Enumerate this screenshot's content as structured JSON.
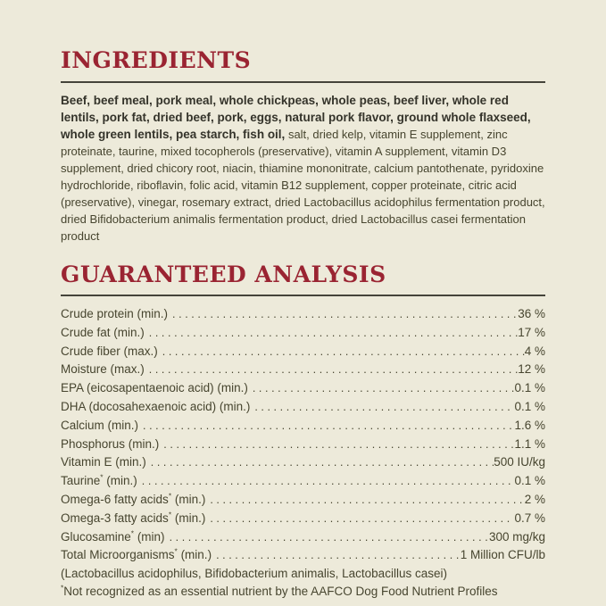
{
  "theme": {
    "background_color": "#edeada",
    "heading_color": "#9a2432",
    "rule_color": "#45443a",
    "text_color": "#47452f",
    "bold_text_color": "#34332a"
  },
  "ingredients": {
    "heading": "INGREDIENTS",
    "primary": "Beef, beef meal, pork meal, whole chickpeas, whole peas, beef liver, whole red lentils, pork fat, dried beef, pork, eggs, natural pork flavor, ground whole flaxseed, whole green lentils, pea starch, fish oil,",
    "secondary": "salt, dried kelp, vitamin E supplement, zinc proteinate, taurine, mixed tocopherols (preservative), vitamin A supplement, vitamin D3 supplement, dried chicory root, niacin, thiamine mononitrate, calcium pantothenate, pyridoxine hydrochloride, riboflavin, folic acid, vitamin B12 supplement, copper proteinate, citric acid (preservative), vinegar, rosemary extract, dried Lactobacillus acidophilus fermentation product, dried Bifidobacterium animalis fermentation product, dried Lactobacillus casei fermentation product"
  },
  "guaranteed_analysis": {
    "heading": "GUARANTEED ANALYSIS",
    "rows": [
      {
        "label": "Crude protein (min.)",
        "value": "36 %"
      },
      {
        "label": "Crude fat (min.)",
        "value": "17 %"
      },
      {
        "label": "Crude fiber (max.)",
        "value": "4 %"
      },
      {
        "label": "Moisture (max.)",
        "value": "12 %"
      },
      {
        "label": "EPA (eicosapentaenoic acid) (min.)",
        "value": "0.1 %"
      },
      {
        "label": "DHA (docosahexaenoic acid) (min.)",
        "value": "0.1 %"
      },
      {
        "label": "Calcium (min.)",
        "value": "1.6 %"
      },
      {
        "label": "Phosphorus (min.)",
        "value": "1.1 %"
      },
      {
        "label": "Vitamin E (min.)",
        "value": "500 IU/kg"
      },
      {
        "label": "Taurine* (min.)",
        "value": "0.1 %"
      },
      {
        "label": "Omega-6 fatty acids* (min.)",
        "value": "2 %"
      },
      {
        "label": "Omega-3 fatty acids* (min.)",
        "value": "0.7 %"
      },
      {
        "label": "Glucosamine* (min)",
        "value": "300 mg/kg"
      },
      {
        "label": "Total Microorganisms* (min.)",
        "value": "1 Million CFU/lb"
      }
    ],
    "microorganisms_detail": "(Lactobacillus acidophilus, Bifidobacterium animalis, Lactobacillus casei)",
    "footnote": "*Not recognized as an essential nutrient by the AAFCO Dog Food Nutrient Profiles"
  }
}
